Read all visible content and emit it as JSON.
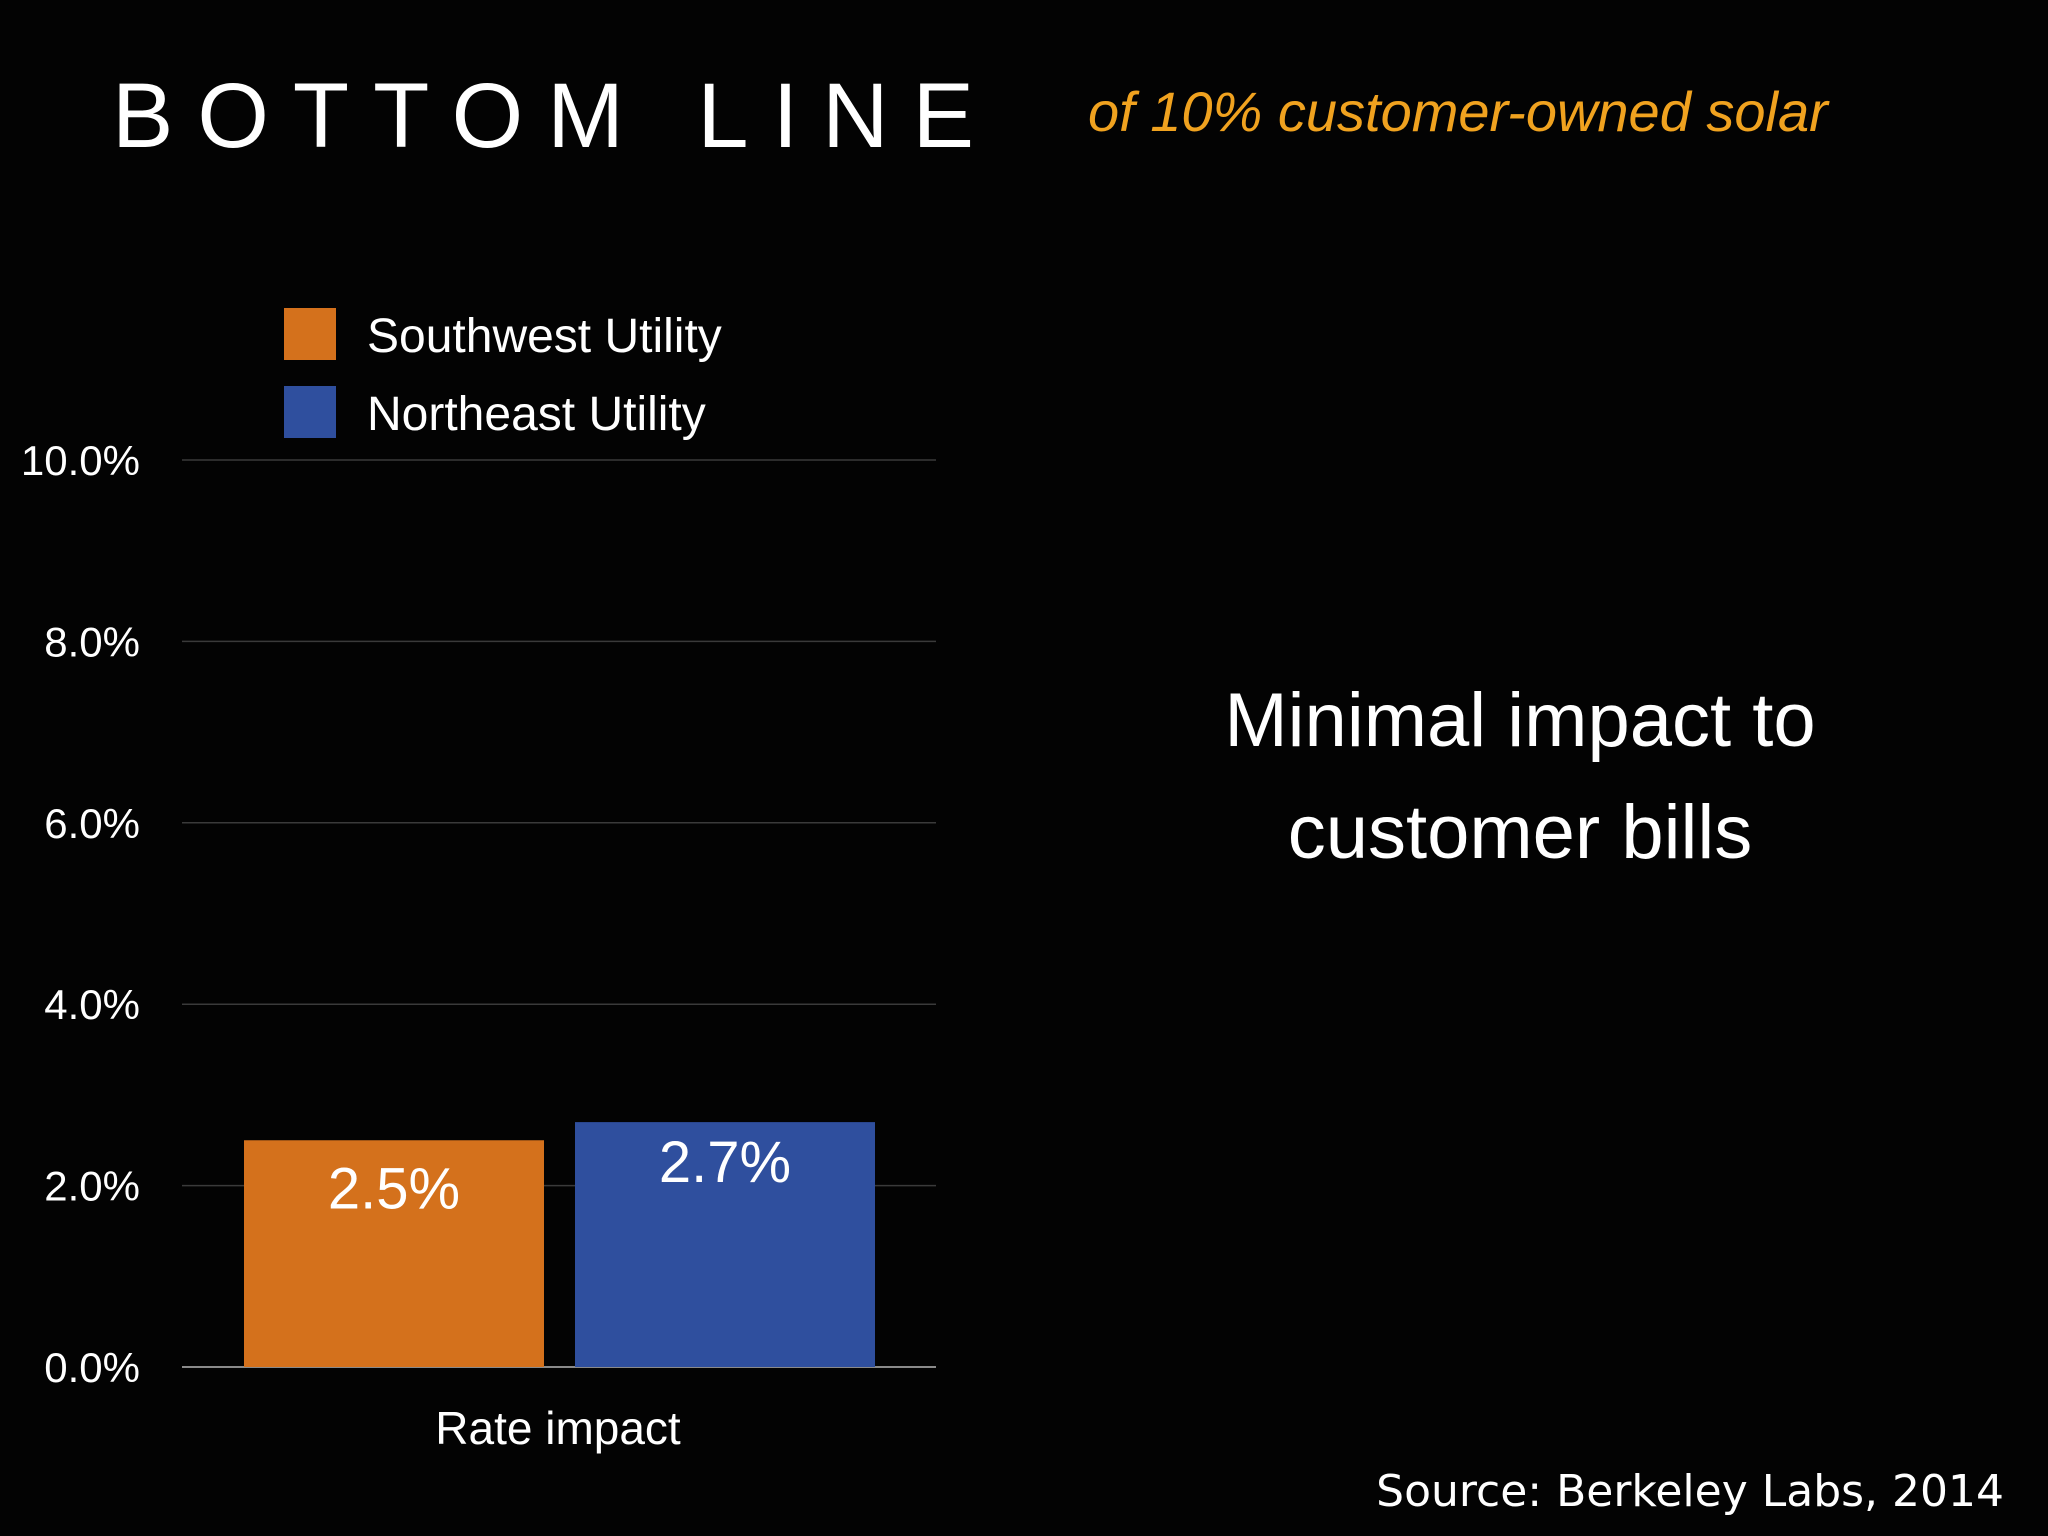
{
  "slide": {
    "title": "BOTTOM LINE",
    "subtitle": "of 10% customer-owned solar",
    "message_line1": "Minimal impact to",
    "message_line2": "customer bills",
    "source": "Source: Berkeley Labs, 2014"
  },
  "chart_data": {
    "type": "bar",
    "title": "",
    "xlabel": "",
    "ylabel": "",
    "categories": [
      "Rate impact"
    ],
    "series": [
      {
        "name": "Southwest Utility",
        "values": [
          2.5
        ],
        "label": "2.5%",
        "color": "#d4711c"
      },
      {
        "name": "Northeast Utility",
        "values": [
          2.7
        ],
        "label": "2.7%",
        "color": "#2f4f9e"
      }
    ],
    "ylim": [
      0,
      10
    ],
    "yticks": [
      "0.0%",
      "2.0%",
      "4.0%",
      "6.0%",
      "8.0%",
      "10.0%"
    ],
    "grid": true,
    "legend_position": "top-left"
  }
}
